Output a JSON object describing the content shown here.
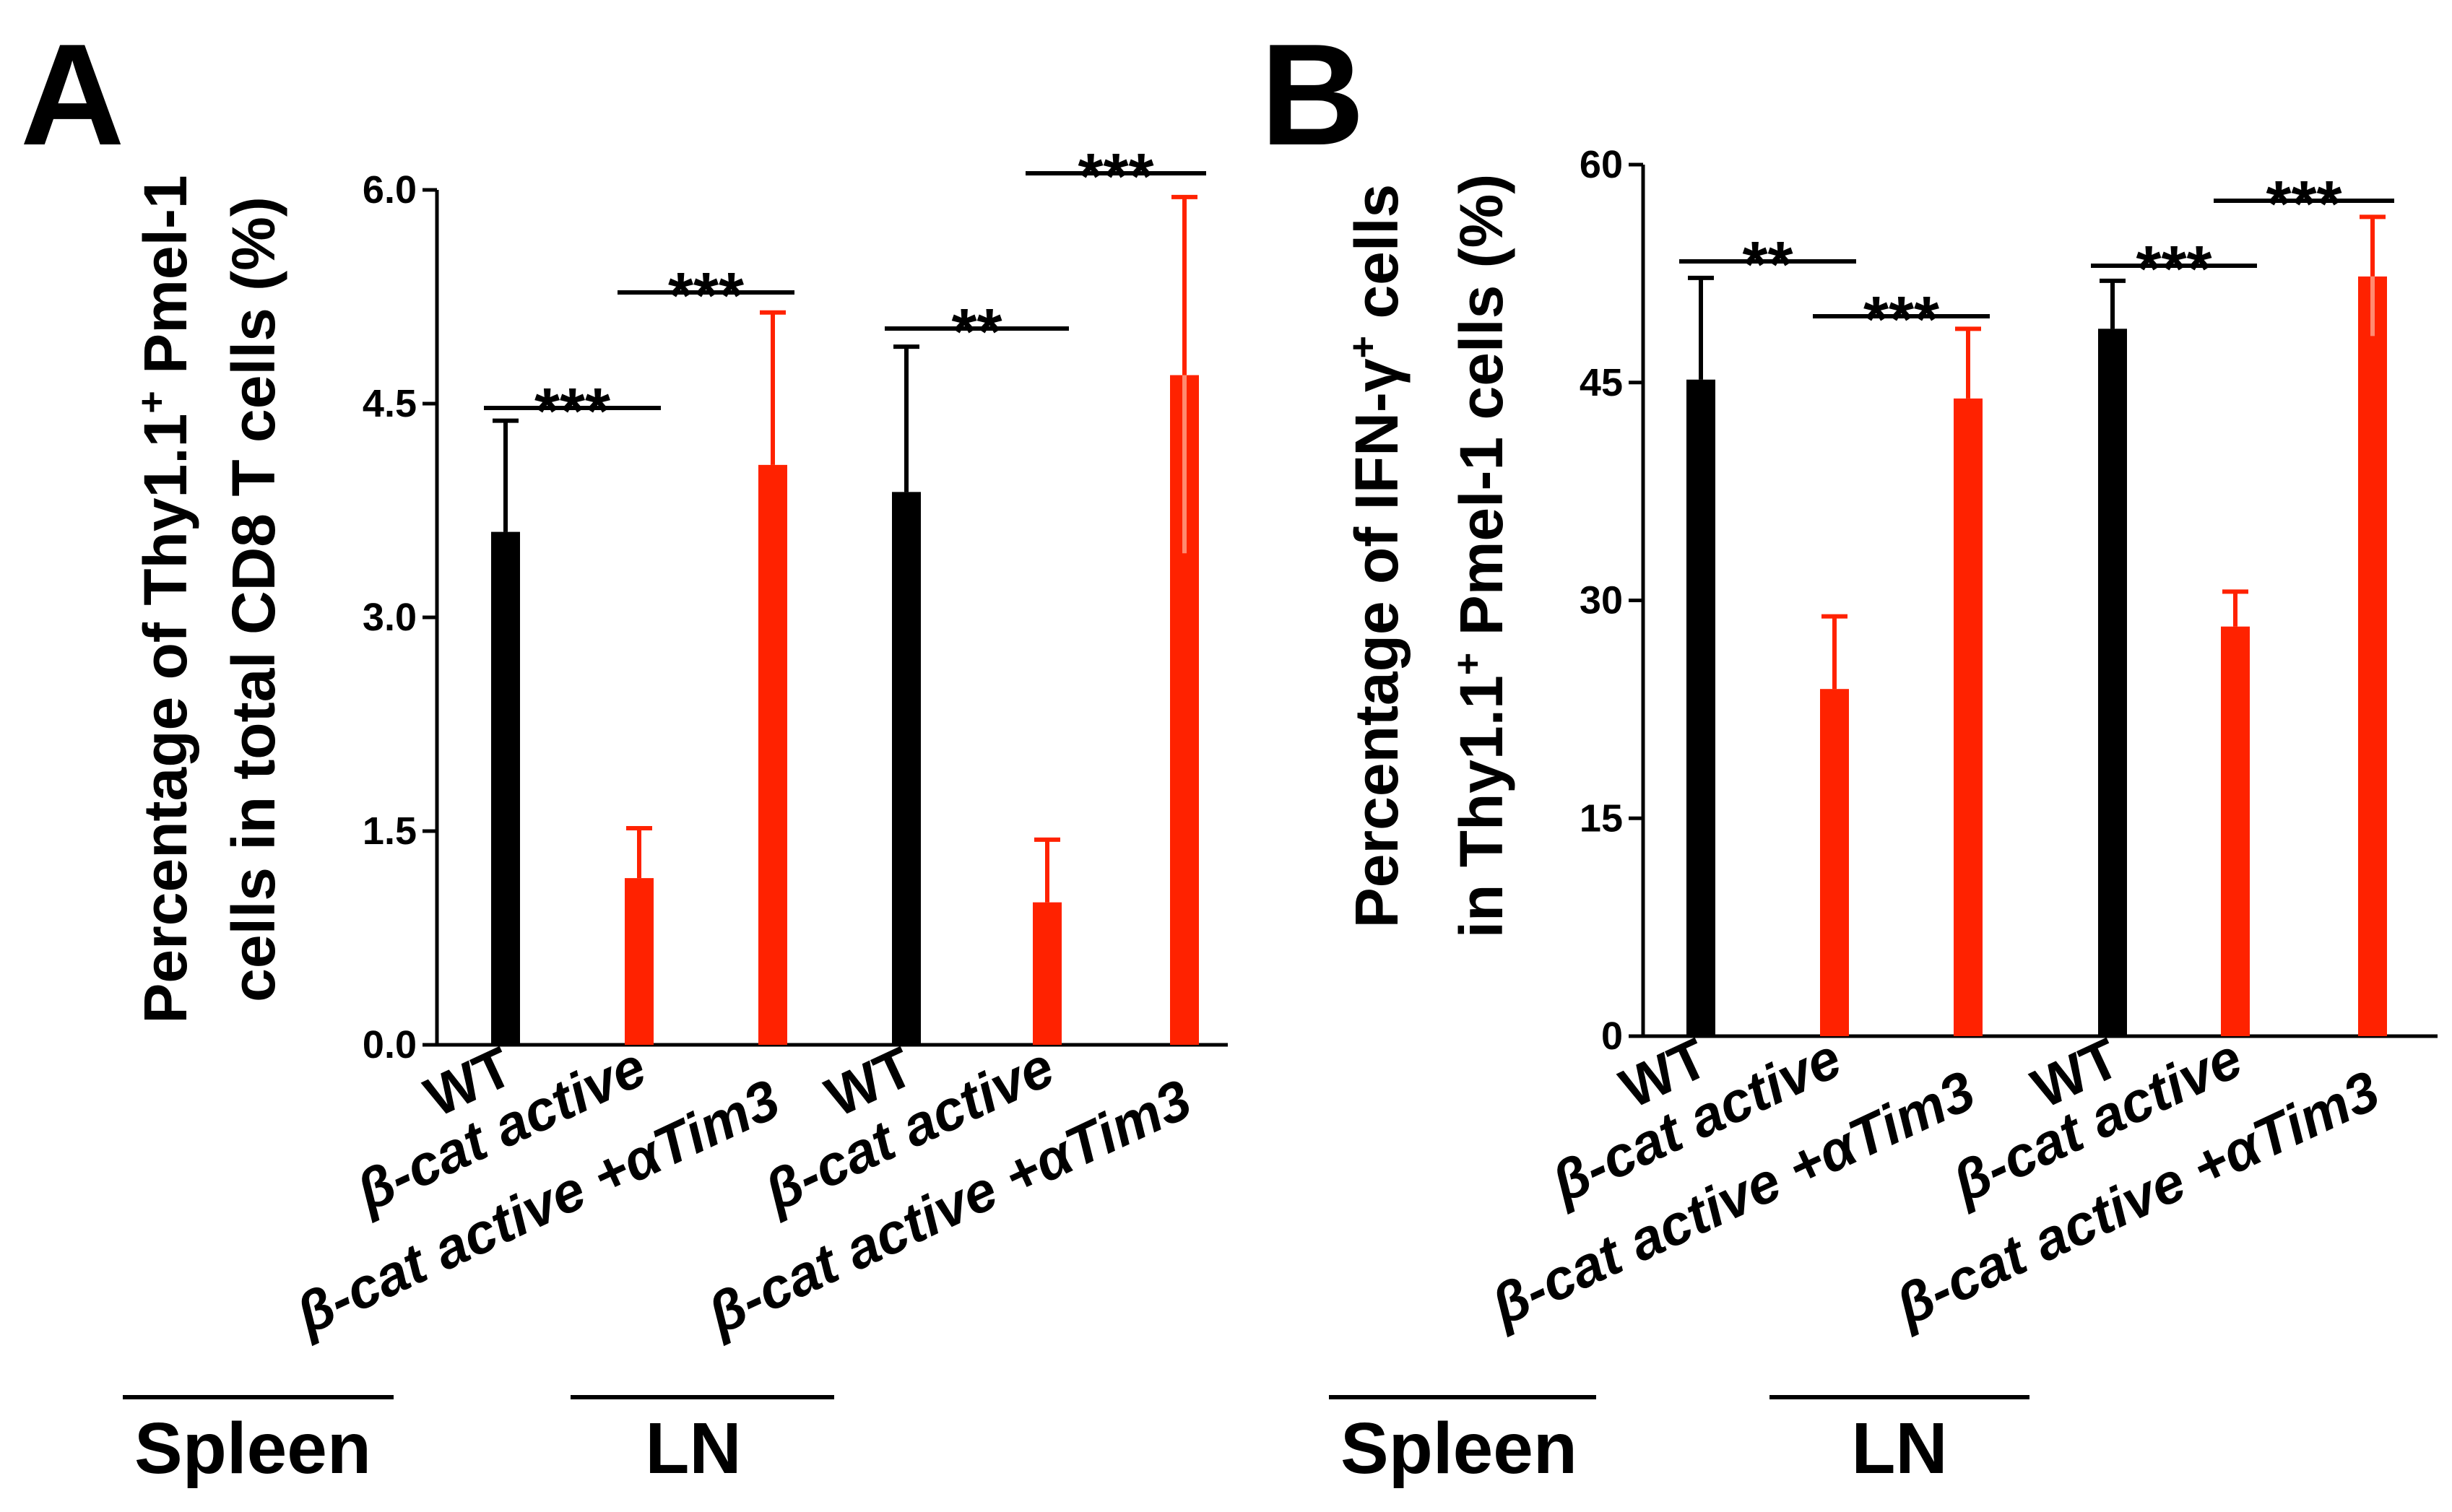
{
  "colors": {
    "wt": "#000000",
    "treated": "#ff2200",
    "axis": "#000000"
  },
  "chart_data": [
    {
      "type": "bar",
      "panel": "A",
      "ylabel_line1_prefix": "Percentage of Thy1.1",
      "ylabel_line1_sup": "+",
      "ylabel_line1_suffix": " Pmel-1",
      "ylabel_line2": "cells in total CD8 T cells (%)",
      "ylim": [
        0,
        6.0
      ],
      "yticks": [
        "0.0",
        "1.5",
        "3.0",
        "4.5",
        "6.0"
      ],
      "categories": [
        "WT",
        "β-cat active",
        "β-cat active +αTim3",
        "WT",
        "β-cat active",
        "β-cat active +αTim3"
      ],
      "values": [
        3.6,
        1.17,
        4.07,
        3.88,
        1.0,
        4.7
      ],
      "errors": [
        0.78,
        0.35,
        1.07,
        1.02,
        0.44,
        1.25
      ],
      "bar_colors": [
        "#000000",
        "#ff2200",
        "#ff2200",
        "#000000",
        "#ff2200",
        "#ff2200"
      ],
      "significance": [
        {
          "from": 0,
          "to": 1,
          "label": "***"
        },
        {
          "from": 1,
          "to": 2,
          "label": "***"
        },
        {
          "from": 3,
          "to": 4,
          "label": "**"
        },
        {
          "from": 4,
          "to": 5,
          "label": "***"
        }
      ],
      "groups": [
        {
          "label": "Spleen",
          "from": 0,
          "to": 2
        },
        {
          "label": "LN",
          "from": 3,
          "to": 5
        }
      ]
    },
    {
      "type": "bar",
      "panel": "B",
      "ylabel_line1_prefix": "Percentage of IFN-γ",
      "ylabel_line1_sup": "+",
      "ylabel_line1_suffix": " cells",
      "ylabel_line2_prefix": "in Thy1.1",
      "ylabel_line2_sup": "+",
      "ylabel_line2_suffix": " Pmel-1 cells (%)",
      "ylim": [
        0,
        60
      ],
      "yticks": [
        "0",
        "15",
        "30",
        "45",
        "60"
      ],
      "categories": [
        "WT",
        "β-cat active",
        "β-cat active +αTim3",
        "WT",
        "β-cat active",
        "β-cat active +αTim3"
      ],
      "values": [
        45.2,
        23.9,
        43.9,
        48.7,
        28.2,
        52.3
      ],
      "errors": [
        7.0,
        5.0,
        4.8,
        3.3,
        2.4,
        4.1
      ],
      "bar_colors": [
        "#000000",
        "#ff2200",
        "#ff2200",
        "#000000",
        "#ff2200",
        "#ff2200"
      ],
      "significance": [
        {
          "from": 0,
          "to": 1,
          "label": "**"
        },
        {
          "from": 1,
          "to": 2,
          "label": "***"
        },
        {
          "from": 3,
          "to": 4,
          "label": "***"
        },
        {
          "from": 4,
          "to": 5,
          "label": "***"
        }
      ],
      "groups": [
        {
          "label": "Spleen",
          "from": 0,
          "to": 2
        },
        {
          "label": "LN",
          "from": 3,
          "to": 5
        }
      ]
    }
  ]
}
